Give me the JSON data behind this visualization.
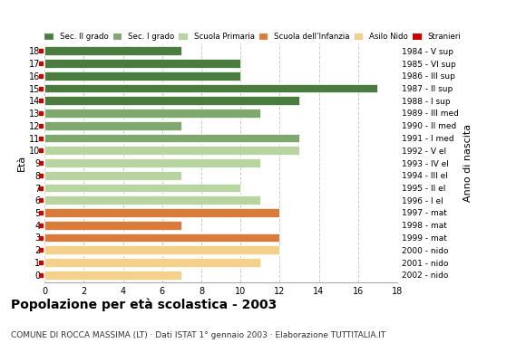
{
  "ages": [
    18,
    17,
    16,
    15,
    14,
    13,
    12,
    11,
    10,
    9,
    8,
    7,
    6,
    5,
    4,
    3,
    2,
    1,
    0
  ],
  "values": [
    7,
    10,
    10,
    17,
    13,
    11,
    7,
    13,
    13,
    11,
    7,
    10,
    11,
    12,
    7,
    12,
    12,
    11,
    7
  ],
  "colors": [
    "#4a7c3f",
    "#4a7c3f",
    "#4a7c3f",
    "#4a7c3f",
    "#4a7c3f",
    "#7fa86e",
    "#7fa86e",
    "#7fa86e",
    "#b8d4a0",
    "#b8d4a0",
    "#b8d4a0",
    "#b8d4a0",
    "#b8d4a0",
    "#d97b3a",
    "#d97b3a",
    "#d97b3a",
    "#f5d08a",
    "#f5d08a",
    "#f5d08a"
  ],
  "anno_nascita": [
    "1984 - V sup",
    "1985 - VI sup",
    "1986 - III sup",
    "1987 - II sup",
    "1988 - I sup",
    "1989 - III med",
    "1990 - II med",
    "1991 - I med",
    "1992 - V el",
    "1993 - IV el",
    "1994 - III el",
    "1995 - II el",
    "1996 - I el",
    "1997 - mat",
    "1998 - mat",
    "1999 - mat",
    "2000 - nido",
    "2001 - nido",
    "2002 - nido"
  ],
  "legend_labels": [
    "Sec. II grado",
    "Sec. I grado",
    "Scuola Primaria",
    "Scuola dell'Infanzia",
    "Asilo Nido",
    "Stranieri"
  ],
  "legend_colors": [
    "#4a7c3f",
    "#7fa86e",
    "#b8d4a0",
    "#d97b3a",
    "#f5d08a",
    "#cc0000"
  ],
  "title": "Popolazione per età scolastica - 2003",
  "subtitle": "COMUNE DI ROCCA MASSIMA (LT) · Dati ISTAT 1° gennaio 2003 · Elaborazione TUTTITALIA.IT",
  "ylabel_left": "Età",
  "ylabel_right": "Anno di nascita",
  "xlim": [
    0,
    18
  ],
  "xticks": [
    0,
    2,
    4,
    6,
    8,
    10,
    12,
    14,
    16,
    18
  ],
  "bg_color": "#ffffff",
  "grid_color": "#cccccc"
}
